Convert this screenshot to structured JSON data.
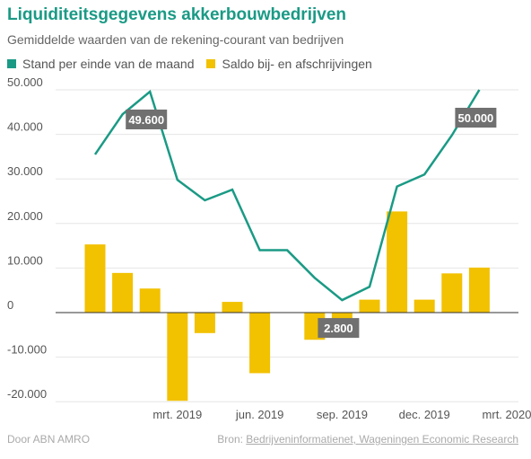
{
  "chart_data": {
    "type": "bar+line",
    "title": "Liquiditeitsgegevens akkerbouwbedrijven",
    "subtitle": "Gemiddelde waarden van de rekening-courant van bedrijven",
    "legend": [
      "Stand per einde van de maand",
      "Saldo bij- en afschrijvingen"
    ],
    "ylim": [
      -20000,
      50000
    ],
    "yticks": [
      -20000,
      -10000,
      0,
      10000,
      20000,
      30000,
      40000,
      50000
    ],
    "ytick_labels": [
      "-20.000",
      "-10.000",
      "0",
      "10.000",
      "20.000",
      "30.000",
      "40.000",
      "50.000"
    ],
    "x_tick_labels": [
      {
        "index": 3,
        "label": "mrt. 2019"
      },
      {
        "index": 6,
        "label": "jun. 2019"
      },
      {
        "index": 9,
        "label": "sep. 2019"
      },
      {
        "index": 12,
        "label": "dec. 2019"
      },
      {
        "index": 15,
        "label": "mrt. 2020"
      }
    ],
    "series": [
      {
        "name": "Stand per einde van de maand",
        "type": "line",
        "color": "#1a9a85",
        "values": [
          35500,
          44500,
          49600,
          29800,
          25200,
          27600,
          14000,
          14000,
          7800,
          2800,
          5800,
          28300,
          31000,
          39800,
          50000
        ]
      },
      {
        "name": "Saldo bij- en afschrijvingen",
        "type": "bar",
        "color": "#f2c100",
        "values": [
          15300,
          8900,
          5400,
          -19800,
          -4600,
          2400,
          -13600,
          0,
          -6100,
          -5000,
          2900,
          22700,
          2900,
          8800,
          10100
        ]
      }
    ],
    "annotations": [
      {
        "series": 0,
        "index": 2,
        "label": "49.600"
      },
      {
        "series": 0,
        "index": 9,
        "label": "2.800"
      },
      {
        "series": 0,
        "index": 14,
        "label": "50.000"
      }
    ]
  },
  "footer": {
    "left": "Door ABN AMRO",
    "source_prefix": "Bron: ",
    "source": "Bedrijveninformatienet, Wageningen Economic Research"
  },
  "colors": {
    "accent": "#1a9a85",
    "bar": "#f2c100",
    "annotation_bg": "#707070"
  }
}
